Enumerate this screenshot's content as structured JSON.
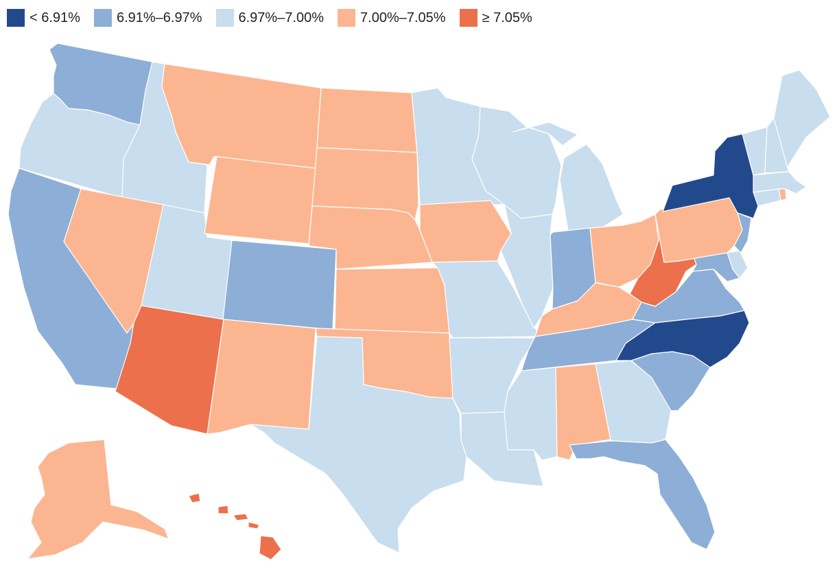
{
  "legend": [
    {
      "label": "< 6.91%",
      "color": "#23498d"
    },
    {
      "label": "6.91%–6.97%",
      "color": "#8daed6"
    },
    {
      "label": "6.97%–7.00%",
      "color": "#c8dded"
    },
    {
      "label": "7.00%–7.05%",
      "color": "#fbb691"
    },
    {
      "label": "≥ 7.05%",
      "color": "#ec704c"
    }
  ],
  "states": [
    {
      "code": "WA",
      "bin": 1
    },
    {
      "code": "OR",
      "bin": 2
    },
    {
      "code": "CA",
      "bin": 1
    },
    {
      "code": "ID",
      "bin": 2
    },
    {
      "code": "NV",
      "bin": 3
    },
    {
      "code": "UT",
      "bin": 2
    },
    {
      "code": "AZ",
      "bin": 4
    },
    {
      "code": "MT",
      "bin": 3
    },
    {
      "code": "WY",
      "bin": 3
    },
    {
      "code": "CO",
      "bin": 1
    },
    {
      "code": "NM",
      "bin": 3
    },
    {
      "code": "ND",
      "bin": 3
    },
    {
      "code": "SD",
      "bin": 3
    },
    {
      "code": "NE",
      "bin": 3
    },
    {
      "code": "KS",
      "bin": 3
    },
    {
      "code": "OK",
      "bin": 3
    },
    {
      "code": "TX",
      "bin": 2
    },
    {
      "code": "MN",
      "bin": 2
    },
    {
      "code": "IA",
      "bin": 3
    },
    {
      "code": "MO",
      "bin": 2
    },
    {
      "code": "AR",
      "bin": 2
    },
    {
      "code": "LA",
      "bin": 2
    },
    {
      "code": "WI",
      "bin": 2
    },
    {
      "code": "IL",
      "bin": 2
    },
    {
      "code": "MI",
      "bin": 2
    },
    {
      "code": "IN",
      "bin": 1
    },
    {
      "code": "OH",
      "bin": 3
    },
    {
      "code": "KY",
      "bin": 3
    },
    {
      "code": "TN",
      "bin": 1
    },
    {
      "code": "MS",
      "bin": 2
    },
    {
      "code": "AL",
      "bin": 3
    },
    {
      "code": "GA",
      "bin": 2
    },
    {
      "code": "FL",
      "bin": 1
    },
    {
      "code": "SC",
      "bin": 1
    },
    {
      "code": "NC",
      "bin": 0
    },
    {
      "code": "VA",
      "bin": 1
    },
    {
      "code": "WV",
      "bin": 4
    },
    {
      "code": "MD",
      "bin": 1
    },
    {
      "code": "DE",
      "bin": 2
    },
    {
      "code": "NJ",
      "bin": 1
    },
    {
      "code": "PA",
      "bin": 3
    },
    {
      "code": "NY",
      "bin": 0
    },
    {
      "code": "CT",
      "bin": 2
    },
    {
      "code": "RI",
      "bin": 3
    },
    {
      "code": "MA",
      "bin": 2
    },
    {
      "code": "VT",
      "bin": 2
    },
    {
      "code": "NH",
      "bin": 2
    },
    {
      "code": "ME",
      "bin": 2
    },
    {
      "code": "AK",
      "bin": 3
    },
    {
      "code": "HI",
      "bin": 4
    }
  ]
}
